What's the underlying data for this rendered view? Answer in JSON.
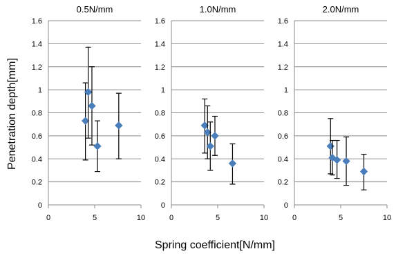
{
  "figure": {
    "xlabel": "Spring coefficient[N/mm]",
    "ylabel": "Penetration depth[mm]"
  },
  "chart_data": [
    {
      "type": "scatter",
      "title": "0.5N/mm",
      "xlim": [
        0,
        10
      ],
      "ylim": [
        0,
        1.6
      ],
      "x_ticks": [
        "0",
        "5",
        "10"
      ],
      "y_ticks": [
        "0",
        "0.2",
        "0.4",
        "0.6",
        "0.8",
        "1",
        "1.2",
        "1.4",
        "1.6"
      ],
      "grid": "horizontal",
      "marker_color": "#4a7ebb",
      "points": [
        {
          "x": 4.0,
          "y": 0.73,
          "err_low": 0.39,
          "err_high": 1.06
        },
        {
          "x": 4.3,
          "y": 0.98,
          "err_low": 0.58,
          "err_high": 1.37
        },
        {
          "x": 4.7,
          "y": 0.86,
          "err_low": 0.52,
          "err_high": 1.2
        },
        {
          "x": 5.3,
          "y": 0.51,
          "err_low": 0.29,
          "err_high": 0.73
        },
        {
          "x": 7.6,
          "y": 0.69,
          "err_low": 0.4,
          "err_high": 0.97
        }
      ]
    },
    {
      "type": "scatter",
      "title": "1.0N/mm",
      "xlim": [
        0,
        10
      ],
      "ylim": [
        0,
        1.6
      ],
      "x_ticks": [
        "0",
        "5",
        "10"
      ],
      "y_ticks": [
        "0",
        "0.2",
        "0.4",
        "0.6",
        "0.8",
        "1",
        "1.2",
        "1.4",
        "1.6"
      ],
      "grid": "horizontal",
      "marker_color": "#4a7ebb",
      "points": [
        {
          "x": 3.6,
          "y": 0.69,
          "err_low": 0.45,
          "err_high": 0.92
        },
        {
          "x": 3.9,
          "y": 0.63,
          "err_low": 0.4,
          "err_high": 0.86
        },
        {
          "x": 4.2,
          "y": 0.51,
          "err_low": 0.3,
          "err_high": 0.72
        },
        {
          "x": 4.7,
          "y": 0.6,
          "err_low": 0.43,
          "err_high": 0.77
        },
        {
          "x": 6.6,
          "y": 0.36,
          "err_low": 0.18,
          "err_high": 0.53
        }
      ]
    },
    {
      "type": "scatter",
      "title": "2.0N/mm",
      "xlim": [
        0,
        10
      ],
      "ylim": [
        0,
        1.6
      ],
      "x_ticks": [
        "0",
        "5",
        "10"
      ],
      "y_ticks": [
        "0",
        "0.2",
        "0.4",
        "0.6",
        "0.8",
        "1",
        "1.2",
        "1.4",
        "1.6"
      ],
      "grid": "horizontal",
      "marker_color": "#4a7ebb",
      "points": [
        {
          "x": 3.9,
          "y": 0.51,
          "err_low": 0.27,
          "err_high": 0.75
        },
        {
          "x": 4.1,
          "y": 0.41,
          "err_low": 0.26,
          "err_high": 0.56
        },
        {
          "x": 4.6,
          "y": 0.39,
          "err_low": 0.23,
          "err_high": 0.56
        },
        {
          "x": 5.6,
          "y": 0.38,
          "err_low": 0.17,
          "err_high": 0.59
        },
        {
          "x": 7.5,
          "y": 0.29,
          "err_low": 0.13,
          "err_high": 0.44
        }
      ]
    }
  ]
}
